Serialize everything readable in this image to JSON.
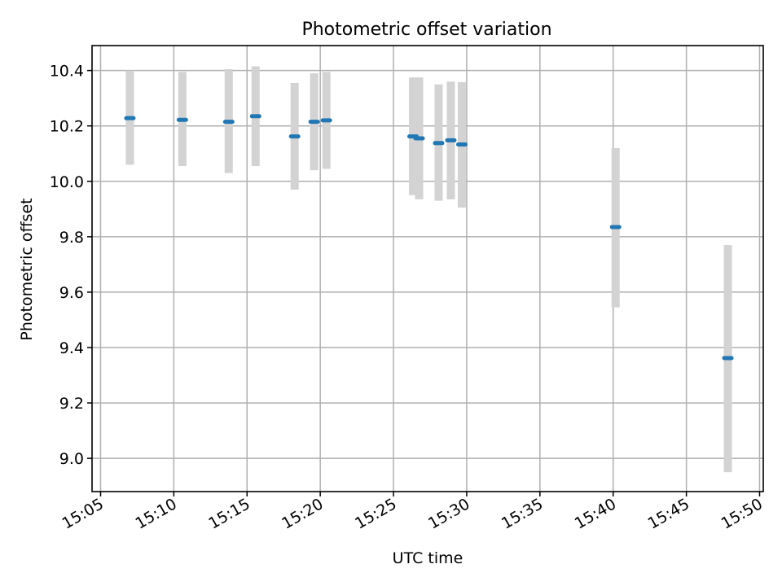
{
  "chart_data": {
    "type": "scatter",
    "title": "Photometric offset variation",
    "xlabel": "UTC time",
    "ylabel": "Photometric offset",
    "x_ticks": [
      "15:05",
      "15:10",
      "15:15",
      "15:20",
      "15:25",
      "15:30",
      "15:35",
      "15:40",
      "15:45",
      "15:50"
    ],
    "y_ticks": [
      "9.0",
      "9.2",
      "9.4",
      "9.6",
      "9.8",
      "10.0",
      "10.2",
      "10.4"
    ],
    "xlim": [
      "15:05:00",
      "15:50:00"
    ],
    "ylim": [
      8.88,
      10.49
    ],
    "grid": true,
    "series": [
      {
        "values": [
          {
            "x": "15:07:00",
            "y": 10.228,
            "low": 10.06,
            "high": 10.4
          },
          {
            "x": "15:10:35",
            "y": 10.222,
            "low": 10.055,
            "high": 10.395
          },
          {
            "x": "15:13:45",
            "y": 10.215,
            "low": 10.03,
            "high": 10.405
          },
          {
            "x": "15:15:35",
            "y": 10.235,
            "low": 10.055,
            "high": 10.415
          },
          {
            "x": "15:18:15",
            "y": 10.162,
            "low": 9.97,
            "high": 10.355
          },
          {
            "x": "15:19:35",
            "y": 10.215,
            "low": 10.04,
            "high": 10.39
          },
          {
            "x": "15:20:25",
            "y": 10.22,
            "low": 10.045,
            "high": 10.395
          },
          {
            "x": "15:26:20",
            "y": 10.162,
            "low": 9.95,
            "high": 10.375
          },
          {
            "x": "15:26:45",
            "y": 10.155,
            "low": 9.935,
            "high": 10.375
          },
          {
            "x": "15:28:05",
            "y": 10.138,
            "low": 9.93,
            "high": 10.35
          },
          {
            "x": "15:28:55",
            "y": 10.148,
            "low": 9.935,
            "high": 10.36
          },
          {
            "x": "15:29:40",
            "y": 10.133,
            "low": 9.905,
            "high": 10.358
          },
          {
            "x": "15:40:10",
            "y": 9.835,
            "low": 9.545,
            "high": 10.12
          },
          {
            "x": "15:47:50",
            "y": 9.362,
            "low": 8.95,
            "high": 9.77
          }
        ]
      }
    ],
    "colors": {
      "point": "#1f77b4",
      "errorbar": "#d3d3d3",
      "grid": "#b0b0b0"
    }
  }
}
